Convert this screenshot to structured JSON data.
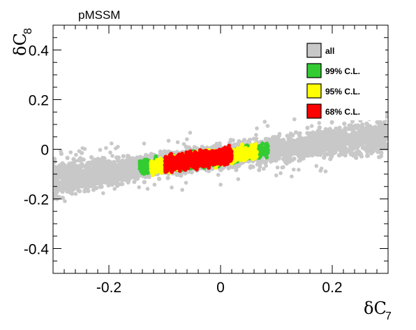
{
  "chart_data": {
    "type": "scatter",
    "title": "pMSSM",
    "xlabel": {
      "main": "δC",
      "sub": "7"
    },
    "ylabel": {
      "main": "δC",
      "sub": "8"
    },
    "xlim": [
      -0.3,
      0.3
    ],
    "ylim": [
      -0.5,
      0.5
    ],
    "x_ticks": [
      {
        "value": -0.2,
        "label": "-0.2"
      },
      {
        "value": 0,
        "label": "0"
      },
      {
        "value": 0.2,
        "label": "0.2"
      }
    ],
    "y_ticks": [
      {
        "value": 0.4,
        "label": "0.4"
      },
      {
        "value": 0.2,
        "label": "0.2"
      },
      {
        "value": 0,
        "label": "0"
      },
      {
        "value": -0.2,
        "label": "-0.2"
      },
      {
        "value": -0.4,
        "label": "-0.4"
      }
    ],
    "grid": false,
    "legend_position": "top-right",
    "series": [
      {
        "name": "all",
        "color": "#c8c8c8",
        "x_range": [
          -0.3,
          0.3
        ],
        "relation": "y ≈ 0.3·x − 0.03",
        "spread": 0.045
      },
      {
        "name": "99% C.L.",
        "color": "#33cc33",
        "x_range": [
          -0.145,
          0.085
        ],
        "relation": "y ≈ 0.3·x − 0.03",
        "spread": 0.025
      },
      {
        "name": "95% C.L.",
        "color": "#ffff00",
        "x_range": [
          -0.125,
          0.065
        ],
        "relation": "y ≈ 0.3·x − 0.03",
        "spread": 0.025
      },
      {
        "name": "68% C.L.",
        "color": "#ff0000",
        "x_range": [
          -0.1,
          0.02
        ],
        "relation": "y ≈ 0.3·x − 0.03",
        "spread": 0.025
      }
    ]
  }
}
